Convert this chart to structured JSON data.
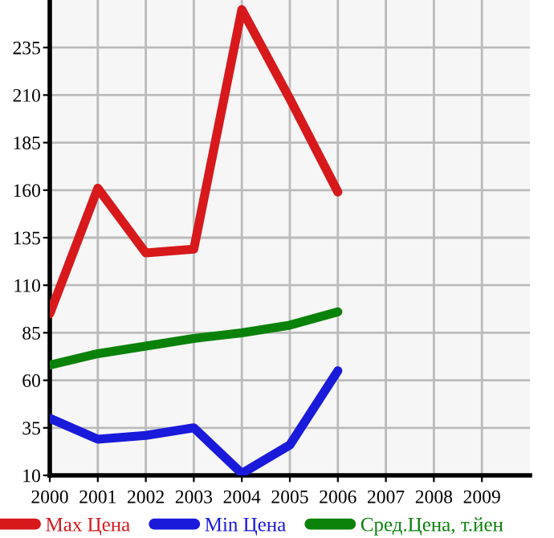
{
  "chart_data": {
    "type": "line",
    "x": [
      2000,
      2001,
      2002,
      2003,
      2004,
      2005,
      2006
    ],
    "series": [
      {
        "name": "Max Цена",
        "color": "#d7191c",
        "values": [
          95,
          161,
          127,
          129,
          255,
          208,
          159
        ]
      },
      {
        "name": "Min Цена",
        "color": "#1a1adb",
        "values": [
          40,
          29,
          31,
          35,
          11,
          26,
          65
        ]
      },
      {
        "name": "Сред.Цена, т.йен",
        "color": "#0a820a",
        "values": [
          68,
          74,
          78,
          82,
          85,
          89,
          96
        ]
      }
    ],
    "xlim": [
      2000,
      2010
    ],
    "xticks": [
      2000,
      2001,
      2002,
      2003,
      2004,
      2005,
      2006,
      2007,
      2008,
      2009
    ],
    "ylim": [
      10,
      260
    ],
    "yticks": [
      10,
      35,
      60,
      85,
      110,
      135,
      160,
      185,
      210,
      235
    ],
    "grid": true,
    "legend": "bottom",
    "marker": "none",
    "line_style": "solid"
  }
}
